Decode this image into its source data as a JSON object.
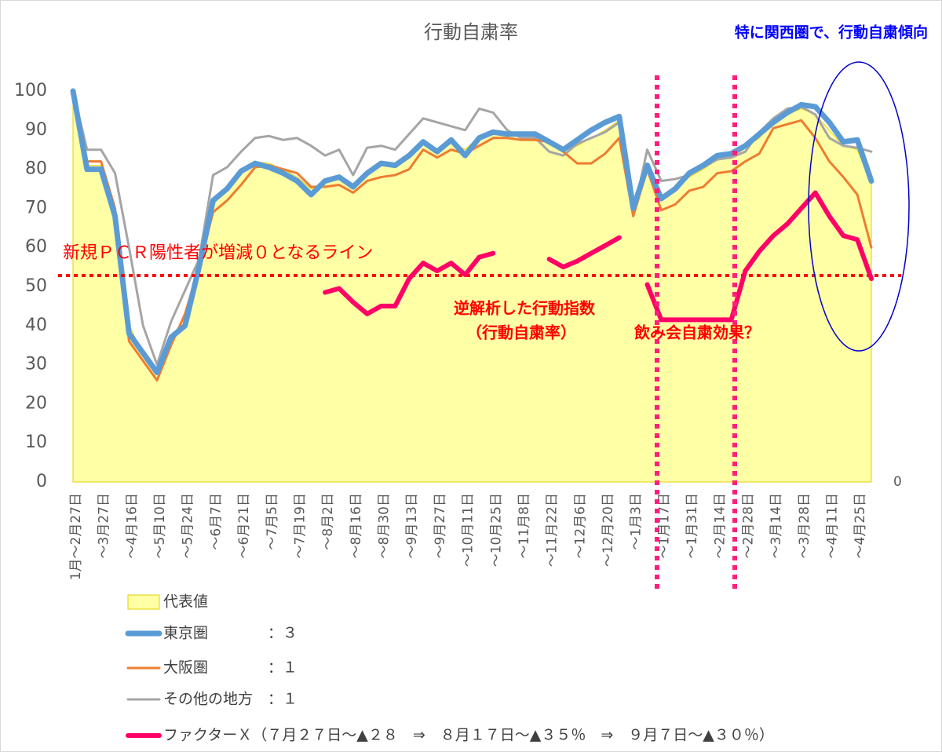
{
  "chart_data": {
    "type": "line",
    "title": "行動自粛率",
    "categories": [
      "1月～2月27日",
      null,
      "～3月27日",
      null,
      "～4月16日",
      null,
      "～5月10日",
      null,
      "～5月24日",
      null,
      "～6月7日",
      null,
      "～6月21日",
      null,
      "～7月5日",
      null,
      "～7月19日",
      null,
      "～8月2日",
      null,
      "～8月16日",
      null,
      "～8月30日",
      null,
      "～9月13日",
      null,
      "～9月27日",
      null,
      "～10月11日",
      null,
      "～10月25日",
      null,
      "～11月8日",
      null,
      "～11月22日",
      null,
      "～12月6日",
      null,
      "～12月20日",
      null,
      "～1月3日",
      null,
      "～1月17日",
      null,
      "～1月31日",
      null,
      "～2月14日",
      null,
      "～2月28日",
      null,
      "～3月14日",
      null,
      "～3月28日",
      null,
      "～4月11日",
      null,
      "～4月25日",
      null
    ],
    "series": [
      {
        "name": "代表値",
        "kind": "area",
        "color": "#ffffa6",
        "values": [
          100,
          81,
          81,
          70,
          40,
          33,
          28,
          37,
          42,
          55,
          72,
          75,
          79,
          82,
          81.5,
          80,
          78,
          75,
          77,
          78,
          75.5,
          79,
          81.5,
          81,
          83.5,
          87,
          85,
          87,
          85,
          88.5,
          89.5,
          89,
          88.5,
          88.5,
          86.5,
          84.5,
          86,
          88,
          90,
          92.5,
          69.5,
          81.5,
          73,
          75,
          78,
          80,
          82.5,
          83,
          85.5,
          88,
          92,
          94,
          95.5,
          94,
          90,
          86,
          85,
          76
        ]
      },
      {
        "name": "東京圏　　　　：３",
        "kind": "line",
        "color": "#5b9bd5",
        "width": 7,
        "values": [
          100,
          80,
          80,
          68,
          38,
          33,
          28,
          37,
          40,
          55,
          72,
          75,
          79.5,
          81.5,
          80.5,
          79,
          77,
          73.5,
          77,
          78,
          75.5,
          79,
          81.5,
          81,
          83.5,
          87,
          84.5,
          87.5,
          83.5,
          88,
          89.5,
          89,
          89,
          89,
          87,
          85,
          87.5,
          90,
          92,
          93.5,
          70,
          81,
          72.5,
          75,
          79,
          81,
          83.5,
          84,
          86,
          89,
          92,
          94.5,
          96.5,
          96,
          92,
          87,
          87.5,
          77
        ]
      },
      {
        "name": "大阪圏　　　　：１",
        "kind": "line",
        "color": "#ed7d31",
        "width": 3,
        "values": [
          100,
          82,
          82,
          70,
          36,
          31,
          26,
          35,
          43,
          55,
          69,
          72,
          76,
          80.5,
          81,
          80,
          79,
          75.5,
          75.5,
          76,
          74,
          77,
          78,
          78.5,
          80,
          85,
          83,
          85,
          84,
          86,
          88,
          88,
          87.5,
          87.5,
          87,
          84.5,
          81.5,
          81.5,
          84,
          88,
          68,
          80,
          69.5,
          71,
          74.5,
          75.5,
          79,
          79.5,
          82,
          84,
          90.5,
          91.5,
          92.5,
          88,
          82,
          78,
          73.5,
          60
        ]
      },
      {
        "name": "その他の地方　：１",
        "kind": "line",
        "color": "#a5a5a5",
        "width": 3,
        "values": [
          100,
          85,
          85,
          79,
          60,
          40,
          30,
          41,
          49,
          57,
          78.5,
          80.5,
          84.5,
          88,
          88.5,
          87.5,
          88,
          86,
          83.5,
          85,
          78.5,
          85.5,
          86,
          85,
          89,
          93,
          92,
          91,
          90,
          95.5,
          94.5,
          90,
          88,
          88,
          84.5,
          83.5,
          86.5,
          88,
          89.5,
          92,
          68.5,
          85,
          77,
          77.5,
          78.5,
          80.5,
          82.5,
          83,
          84.5,
          89.5,
          93,
          95.5,
          96,
          94,
          88,
          86,
          85.5,
          84.5
        ]
      },
      {
        "name": "ファクターＸ（７月２７日～▲２８　⇒　８月１７日～▲３５％　⇒　９月７日～▲３０％）",
        "kind": "line",
        "color": "#ff0066",
        "width": 6,
        "values": [
          null,
          null,
          null,
          null,
          null,
          null,
          null,
          null,
          null,
          null,
          null,
          null,
          null,
          null,
          null,
          null,
          null,
          null,
          48.5,
          49.5,
          46,
          43,
          45,
          45,
          52,
          56,
          54,
          56,
          53,
          57.5,
          58.5,
          null,
          null,
          null,
          57,
          55,
          56.5,
          58.5,
          60.5,
          62.5,
          null,
          50.5,
          41.5,
          41.5,
          41.5,
          41.5,
          41.5,
          41.5,
          54,
          59,
          63,
          66,
          70,
          74,
          68,
          63,
          62,
          52
        ]
      }
    ],
    "ylim": [
      0,
      100
    ],
    "yticks": [
      0,
      10,
      20,
      30,
      40,
      50,
      60,
      70,
      80,
      90,
      100
    ],
    "y2lim": [
      0,
      100
    ],
    "y2ticks": [
      0
    ],
    "threshold": {
      "value": 52.8,
      "label": "新規ＰＣＲ陽性者が増減０となるライン",
      "color": "#ff0000"
    },
    "annotations": [
      "特に関西圏で、行動自粛傾向",
      "逆解析した行動指数",
      "（行動自粛率）",
      "飲み会自粛効果？"
    ]
  }
}
